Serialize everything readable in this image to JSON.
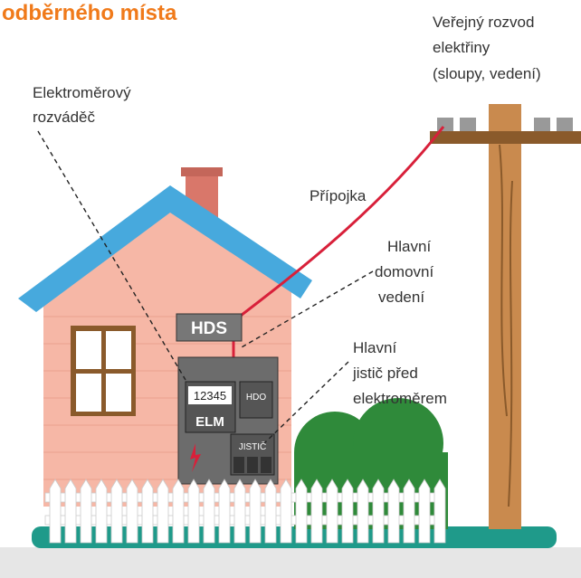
{
  "title": "odběrného místa",
  "labels": {
    "public_grid": [
      "Veřejný rozvod",
      "elektřiny",
      "(sloupy, vedení)"
    ],
    "meter_cabinet": [
      "Elektroměrový",
      "rozváděč"
    ],
    "connection": [
      "Přípojka"
    ],
    "main_house_line": [
      "Hlavní",
      "domovní",
      "vedení"
    ],
    "main_breaker": [
      "Hlavní",
      "jistič před",
      "elektroměrem"
    ]
  },
  "box_labels": {
    "hds": "HDS",
    "meter_number": "12345",
    "hdo": "HDO",
    "elm": "ELM",
    "breaker": "JISTIČ"
  }
}
